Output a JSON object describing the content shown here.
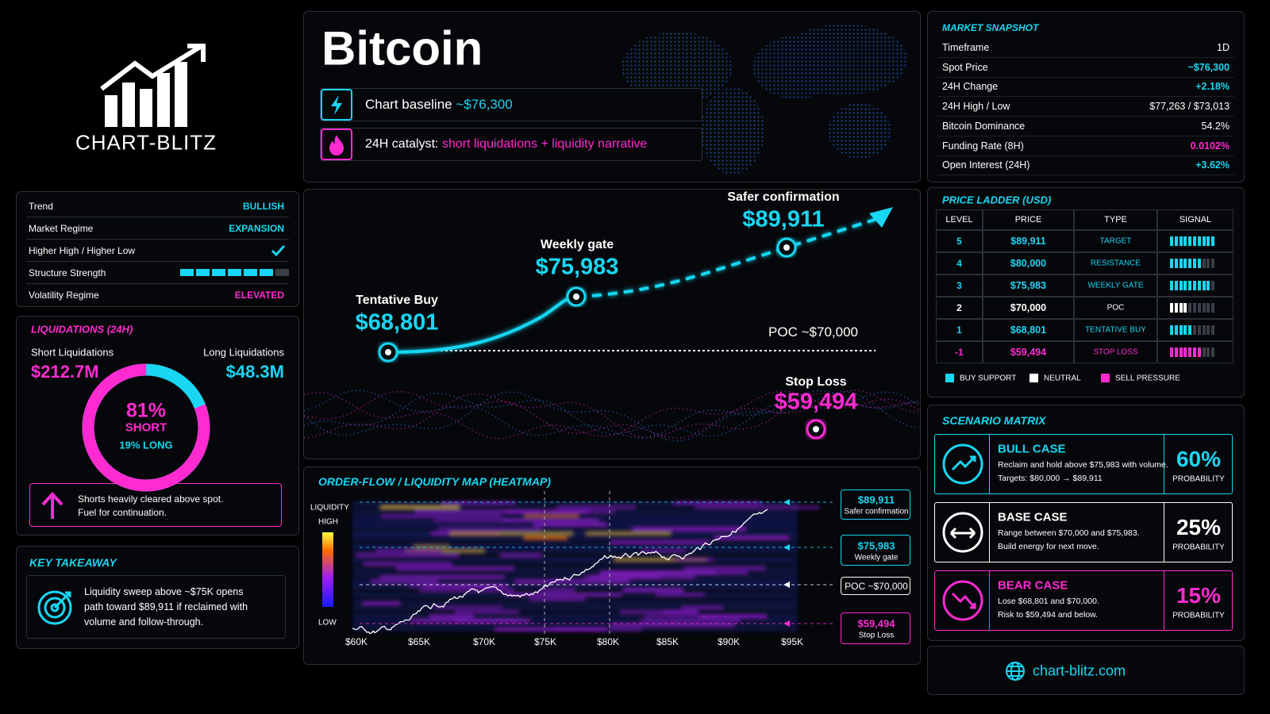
{
  "theme": {
    "buy": "#19d6f2",
    "sell": "#ff2bd1",
    "neutral": "#ffffff"
  },
  "logo": {
    "text": "CHART-BLITZ"
  },
  "header": {
    "title": "Bitcoin",
    "baseline_label": "Chart baseline",
    "baseline_value": "~$76,300",
    "catalyst_label": "24H catalyst:",
    "catalyst_value": "short liquidations + liquidity narrative"
  },
  "structure": {
    "rows": [
      {
        "label": "Trend",
        "value": "BULLISH",
        "color": "#19d6f2"
      },
      {
        "label": "Market Regime",
        "value": "EXPANSION",
        "color": "#19d6f2"
      },
      {
        "label": "Higher High / Higher Low",
        "check": true
      },
      {
        "label": "Structure Strength",
        "filled": 6,
        "total": 7
      },
      {
        "label": "Volatility Regime",
        "value": "ELEVATED",
        "color": "#ff2bd1"
      }
    ]
  },
  "liquidations": {
    "title": "LIQUIDATIONS (24H)",
    "short_label": "Short Liquidations",
    "short_value": "$212.7M",
    "long_label": "Long Liquidations",
    "long_value": "$48.3M",
    "short_share": {
      "value": 81,
      "label": "81%"
    },
    "short_text": "SHORT",
    "long_text": "19% LONG",
    "note": [
      "Shorts heavily cleared above spot.",
      "Fuel for continuation."
    ]
  },
  "takeaway": {
    "title": "KEY TAKEAWAY",
    "lines": [
      "Liquidity sweep above ~$75K opens",
      "path toward $89,911 if reclaimed with",
      "volume and follow-through."
    ]
  },
  "price_path": {
    "points": [
      {
        "label": "Tentative Buy",
        "price": "$68,801"
      },
      {
        "label": "Weekly gate",
        "price": "$75,983"
      },
      {
        "label": "Safer confirmation",
        "price": "$89,911"
      }
    ],
    "poc": "POC ~$70,000",
    "stop": {
      "label": "Stop Loss",
      "price": "$59,494"
    }
  },
  "heatmap": {
    "title": "ORDER-FLOW / LIQUIDITY MAP (HEATMAP)",
    "legend_title": "LIQUIDITY",
    "legend_high": "HIGH",
    "legend_low": "LOW",
    "x_labels": [
      "$60K",
      "$65K",
      "$70K",
      "$75K",
      "$80K",
      "$85K",
      "$90K",
      "$95K"
    ],
    "tags": [
      {
        "price": "$89,911",
        "note": "Safer confirmation",
        "color": "#19d6f2"
      },
      {
        "price": "$75,983",
        "note": "Weekly gate",
        "color": "#19d6f2"
      },
      {
        "price": "POC ~$70,000",
        "color": "#ffffff"
      },
      {
        "price": "$59,494",
        "note": "Stop Loss",
        "color": "#ff2bd1"
      }
    ]
  },
  "snapshot": {
    "title": "MARKET SNAPSHOT",
    "rows": [
      {
        "label": "Timeframe",
        "value": "1D"
      },
      {
        "label": "Spot Price",
        "value": "~$76,300",
        "color": "#19d6f2"
      },
      {
        "label": "24H Change",
        "value": "+2.18%",
        "color": "#19d6f2"
      },
      {
        "label": "24H High / Low",
        "value": "$77,263 / $73,013"
      },
      {
        "label": "Bitcoin Dominance",
        "value": "54.2%"
      },
      {
        "label": "Funding Rate (8H)",
        "value": "0.0102%",
        "color": "#ff2bd1"
      },
      {
        "label": "Open Interest (24H)",
        "value": "+3.62%",
        "color": "#19d6f2"
      }
    ]
  },
  "ladder": {
    "title": "PRICE LADDER (USD)",
    "columns": [
      "LEVEL",
      "PRICE",
      "TYPE",
      "SIGNAL"
    ],
    "signal_max": 10,
    "rows": [
      {
        "level": 5,
        "price": "$89,911",
        "type": "TARGET",
        "signal": 10,
        "color": "#19d6f2"
      },
      {
        "level": 4,
        "price": "$80,000",
        "type": "RESISTANCE",
        "signal": 7,
        "color": "#19d6f2"
      },
      {
        "level": 3,
        "price": "$75,983",
        "type": "WEEKLY GATE",
        "signal": 9,
        "color": "#19d6f2"
      },
      {
        "level": 2,
        "price": "$70,000",
        "type": "POC",
        "signal": 4,
        "color": "#ffffff"
      },
      {
        "level": 1,
        "price": "$68,801",
        "type": "TENTATIVE BUY",
        "signal": 5,
        "color": "#19d6f2"
      },
      {
        "level": -1,
        "price": "$59,494",
        "type": "STOP LOSS",
        "signal": 7,
        "color": "#ff2bd1"
      }
    ],
    "legend": [
      {
        "name": "BUY SUPPORT",
        "color": "#19d6f2"
      },
      {
        "name": "NEUTRAL",
        "color": "#ffffff"
      },
      {
        "name": "SELL PRESSURE",
        "color": "#ff2bd1"
      }
    ]
  },
  "scenarios": {
    "title": "SCENARIO MATRIX",
    "probability_label": "PROBABILITY",
    "cases": [
      {
        "name": "BULL CASE",
        "lines": [
          "Reclaim and hold above $75,983 with volume.",
          "Targets: $80,000 → $89,911"
        ],
        "probability": "60%",
        "color": "#19d6f2"
      },
      {
        "name": "BASE CASE",
        "lines": [
          "Range between $70,000 and $75,983.",
          "Build energy for next move."
        ],
        "probability": "25%",
        "color": "#ffffff"
      },
      {
        "name": "BEAR CASE",
        "lines": [
          "Lose $68,801 and $70,000.",
          "Risk to $59,494 and below."
        ],
        "probability": "15%",
        "color": "#ff2bd1"
      }
    ]
  },
  "footer": {
    "url": "chart-blitz.com"
  }
}
